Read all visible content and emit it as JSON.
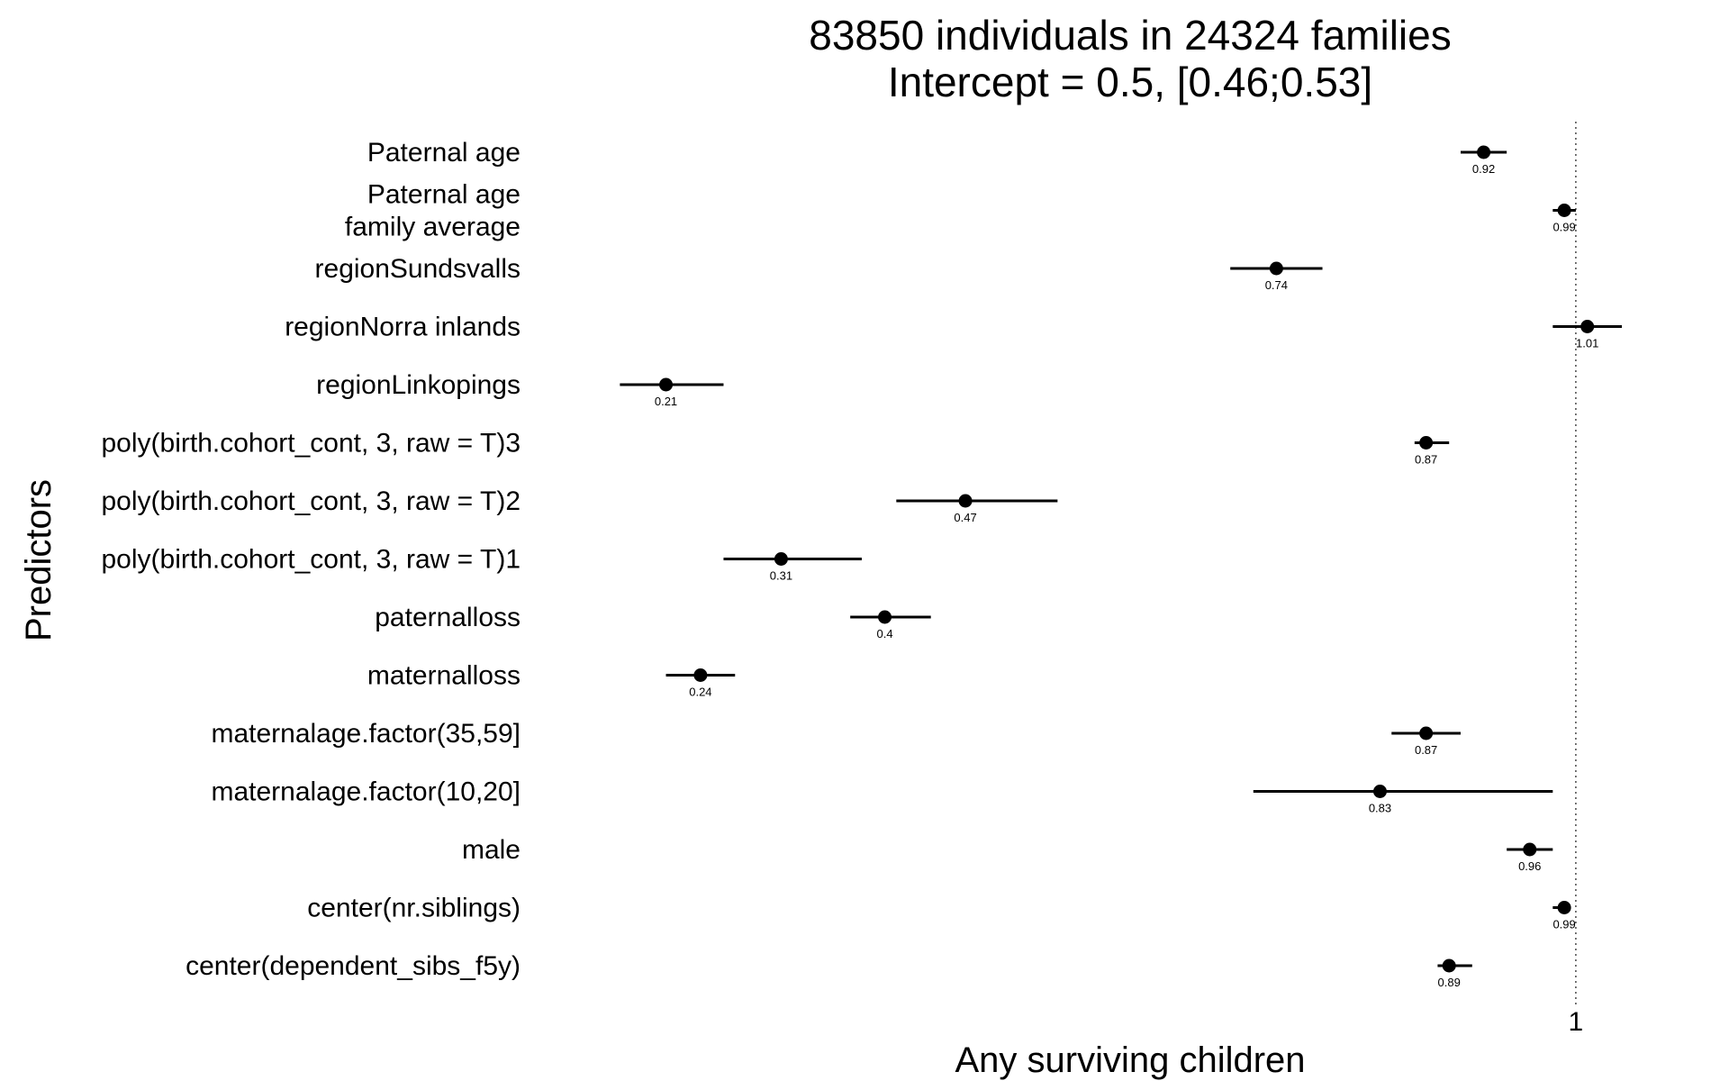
{
  "chart_data": {
    "type": "forest",
    "title": "83850 individuals in 24324 families",
    "subtitle": "Intercept = 0.5, [0.46;0.53]",
    "xlabel": "Any surviving children",
    "ylabel": "Predictors",
    "x_ticks": [
      "1"
    ],
    "reference_line": 1,
    "xlim": [
      0.14,
      1.09
    ],
    "grid": false,
    "estimates": [
      {
        "label": [
          "Paternal age"
        ],
        "value": 0.92,
        "value_label": "0.92",
        "ci": [
          0.9,
          0.94
        ]
      },
      {
        "label": [
          "Paternal age",
          "family average"
        ],
        "value": 0.99,
        "value_label": "0.99",
        "ci": [
          0.98,
          1.0
        ]
      },
      {
        "label": [
          "regionSundsvalls"
        ],
        "value": 0.74,
        "value_label": "0.74",
        "ci": [
          0.7,
          0.78
        ]
      },
      {
        "label": [
          "regionNorra inlands"
        ],
        "value": 1.01,
        "value_label": "1.01",
        "ci": [
          0.98,
          1.04
        ]
      },
      {
        "label": [
          "regionLinkopings"
        ],
        "value": 0.21,
        "value_label": "0.21",
        "ci": [
          0.17,
          0.26
        ]
      },
      {
        "label": [
          "poly(birth.cohort_cont, 3, raw = T)3"
        ],
        "value": 0.87,
        "value_label": "0.87",
        "ci": [
          0.86,
          0.89
        ]
      },
      {
        "label": [
          "poly(birth.cohort_cont, 3, raw = T)2"
        ],
        "value": 0.47,
        "value_label": "0.47",
        "ci": [
          0.41,
          0.55
        ]
      },
      {
        "label": [
          "poly(birth.cohort_cont, 3, raw = T)1"
        ],
        "value": 0.31,
        "value_label": "0.31",
        "ci": [
          0.26,
          0.38
        ]
      },
      {
        "label": [
          "paternalloss"
        ],
        "value": 0.4,
        "value_label": "0.4",
        "ci": [
          0.37,
          0.44
        ]
      },
      {
        "label": [
          "maternalloss"
        ],
        "value": 0.24,
        "value_label": "0.24",
        "ci": [
          0.21,
          0.27
        ]
      },
      {
        "label": [
          "maternalage.factor(35,59]"
        ],
        "value": 0.87,
        "value_label": "0.87",
        "ci": [
          0.84,
          0.9
        ]
      },
      {
        "label": [
          "maternalage.factor(10,20]"
        ],
        "value": 0.83,
        "value_label": "0.83",
        "ci": [
          0.72,
          0.98
        ]
      },
      {
        "label": [
          "male"
        ],
        "value": 0.96,
        "value_label": "0.96",
        "ci": [
          0.94,
          0.98
        ]
      },
      {
        "label": [
          "center(nr.siblings)"
        ],
        "value": 0.99,
        "value_label": "0.99",
        "ci": [
          0.98,
          0.995
        ]
      },
      {
        "label": [
          "center(dependent_sibs_f5y)"
        ],
        "value": 0.89,
        "value_label": "0.89",
        "ci": [
          0.88,
          0.91
        ]
      }
    ]
  }
}
